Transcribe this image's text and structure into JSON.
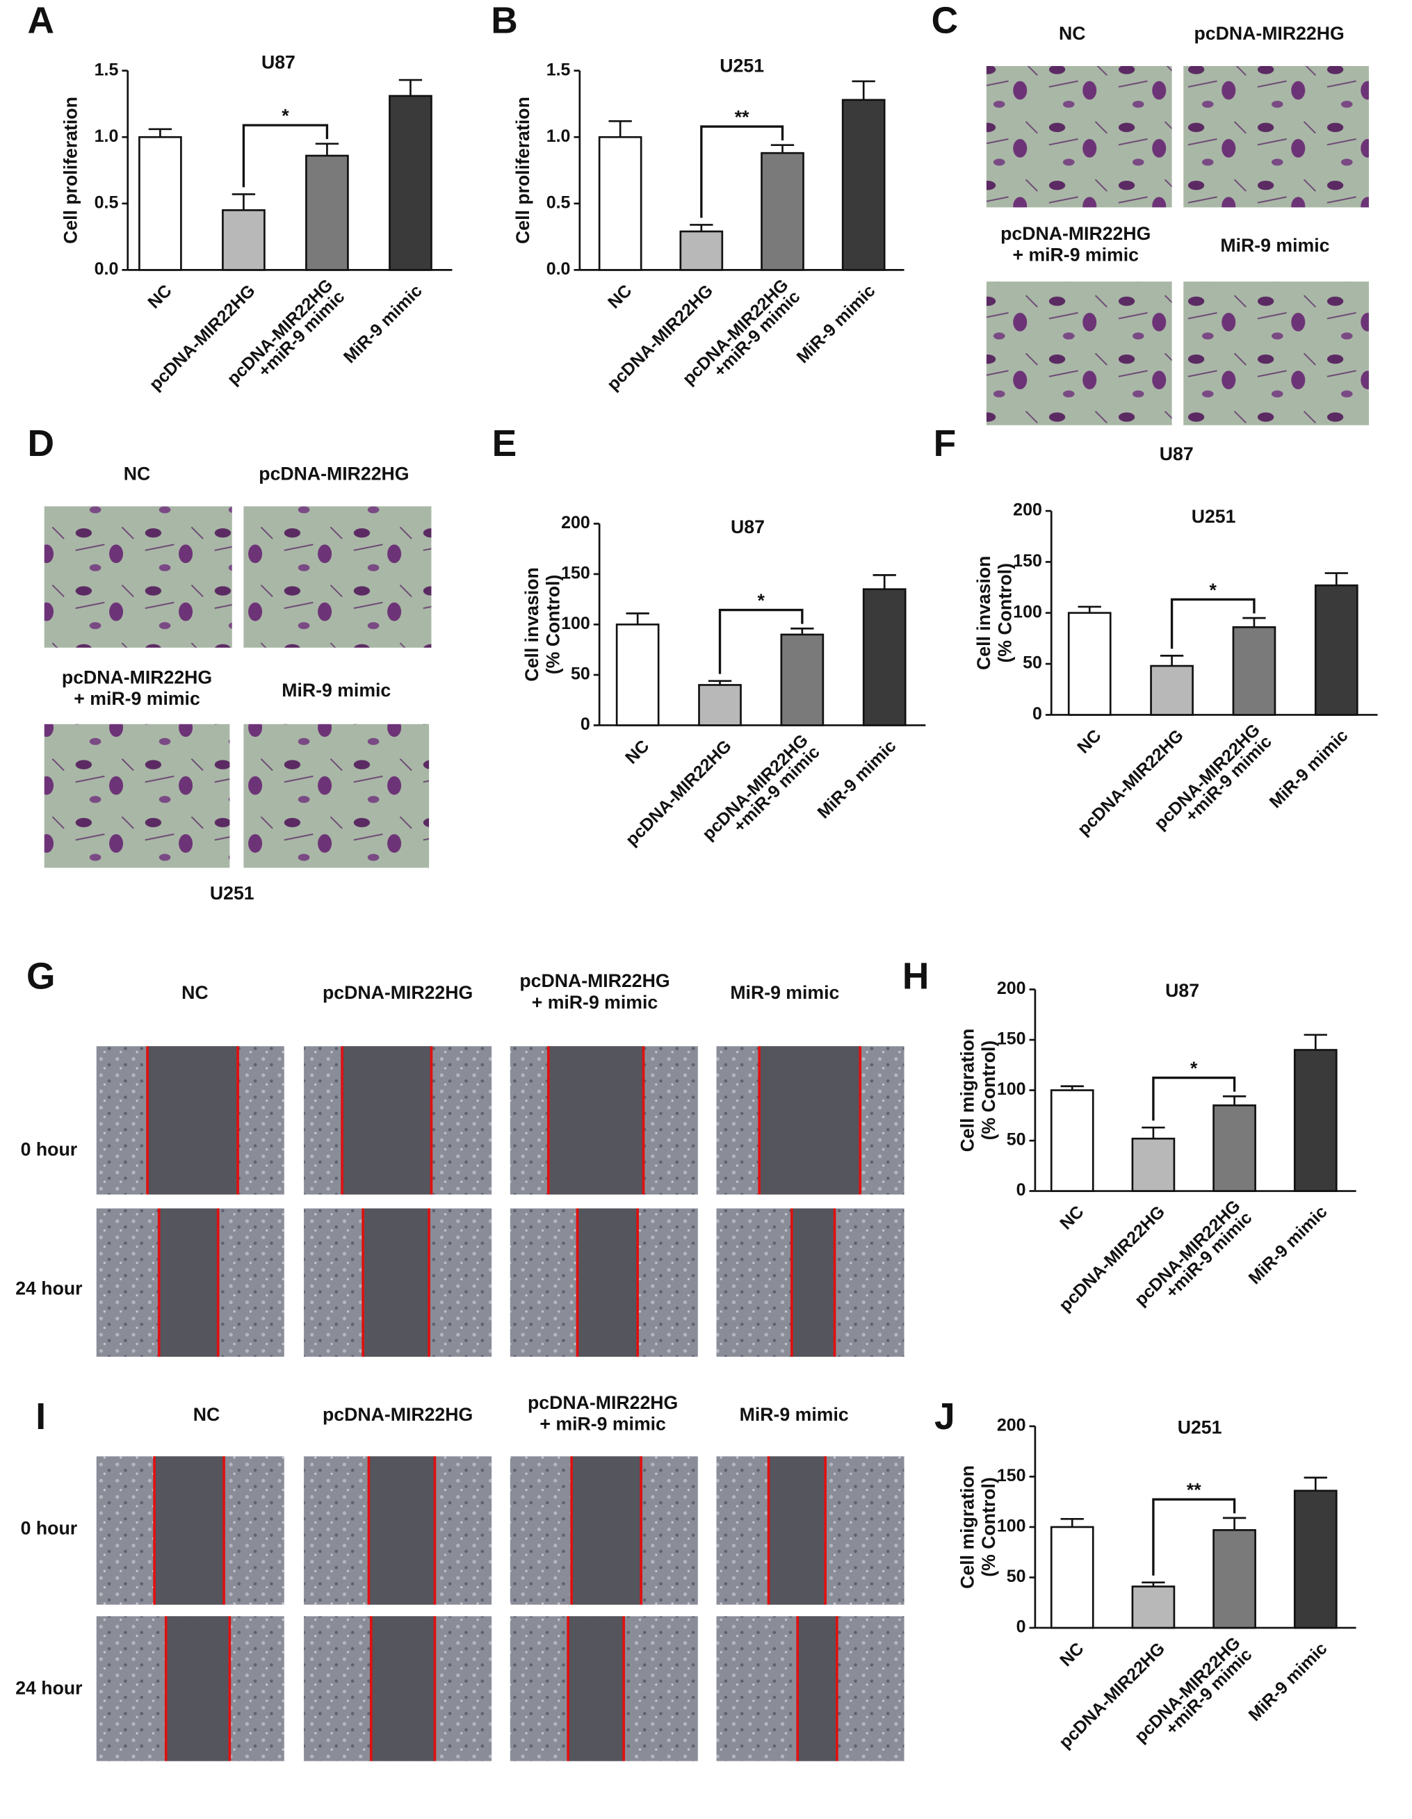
{
  "chart_data": [
    {
      "type": "bar",
      "title": "U87",
      "ylabel": "Cell  proliferation",
      "categories": [
        "NC",
        "pcDNA-MIR22HG",
        "pcDNA-MIR22HG\n+miR-9 mimic",
        "MiR-9 mimic"
      ],
      "values": [
        1.0,
        0.45,
        0.86,
        1.31
      ],
      "errors": [
        0.06,
        0.12,
        0.09,
        0.12
      ],
      "colors": [
        "#ffffff",
        "#b8b8b8",
        "#7a7a7a",
        "#3a3a3a"
      ],
      "ylim": [
        0,
        1.5
      ],
      "yticks": [
        {
          "value": 0,
          "label": "0.0"
        },
        0.5,
        {
          "value": 1,
          "label": "1.0"
        },
        1.5
      ],
      "annotations": [
        {
          "text": "*",
          "from": 1,
          "to": 2
        }
      ]
    },
    {
      "type": "bar",
      "title": "U251",
      "ylabel": "Cell  proliferation",
      "categories": [
        "NC",
        "pcDNA-MIR22HG",
        "pcDNA-MIR22HG\n+miR-9 mimic",
        "MiR-9 mimic"
      ],
      "values": [
        1.0,
        0.29,
        0.88,
        1.28
      ],
      "errors": [
        0.12,
        0.05,
        0.06,
        0.14
      ],
      "colors": [
        "#ffffff",
        "#b8b8b8",
        "#7a7a7a",
        "#3a3a3a"
      ],
      "ylim": [
        0,
        1.5
      ],
      "yticks": [
        {
          "value": 0,
          "label": "0.0"
        },
        0.5,
        {
          "value": 1,
          "label": "1.0"
        },
        1.5
      ],
      "annotations": [
        {
          "text": "**",
          "from": 1,
          "to": 2
        }
      ]
    },
    {
      "type": "bar",
      "title": "U87",
      "ylabel": "Cell invasion\n(% Control)",
      "categories": [
        "NC",
        "pcDNA-MIR22HG",
        "pcDNA-MIR22HG\n+miR-9 mimic",
        "MiR-9 mimic"
      ],
      "values": [
        100,
        40,
        90,
        135
      ],
      "errors": [
        11,
        4,
        6,
        14
      ],
      "colors": [
        "#ffffff",
        "#b8b8b8",
        "#7a7a7a",
        "#3a3a3a"
      ],
      "ylim": [
        0,
        200
      ],
      "yticks": [
        0,
        50,
        100,
        150,
        200
      ],
      "annotations": [
        {
          "text": "*",
          "from": 1,
          "to": 2
        }
      ]
    },
    {
      "type": "bar",
      "title": "U251",
      "ylabel": "Cell invasion\n(% Control)",
      "categories": [
        "NC",
        "pcDNA-MIR22HG",
        "pcDNA-MIR22HG\n+miR-9 mimic",
        "MiR-9 mimic"
      ],
      "values": [
        100,
        48,
        86,
        127
      ],
      "errors": [
        6,
        10,
        9,
        12
      ],
      "colors": [
        "#ffffff",
        "#b8b8b8",
        "#7a7a7a",
        "#3a3a3a"
      ],
      "ylim": [
        0,
        200
      ],
      "yticks": [
        0,
        50,
        100,
        150,
        200
      ],
      "annotations": [
        {
          "text": "*",
          "from": 1,
          "to": 2
        }
      ]
    },
    {
      "type": "bar",
      "title": "U87",
      "ylabel": "Cell migration\n(% Control)",
      "categories": [
        "NC",
        "pcDNA-MIR22HG",
        "pcDNA-MIR22HG\n+miR-9 mimic",
        "MiR-9 mimic"
      ],
      "values": [
        100,
        52,
        85,
        140
      ],
      "errors": [
        4,
        11,
        9,
        15
      ],
      "colors": [
        "#ffffff",
        "#b8b8b8",
        "#7a7a7a",
        "#3a3a3a"
      ],
      "ylim": [
        0,
        200
      ],
      "yticks": [
        0,
        50,
        100,
        150,
        200
      ],
      "annotations": [
        {
          "text": "*",
          "from": 1,
          "to": 2
        }
      ]
    },
    {
      "type": "bar",
      "title": "U251",
      "ylabel": "Cell migration\n(% Control)",
      "categories": [
        "NC",
        "pcDNA-MIR22HG",
        "pcDNA-MIR22HG\n+miR-9 mimic",
        "MiR-9 mimic"
      ],
      "values": [
        100,
        41,
        97,
        136
      ],
      "errors": [
        8,
        4,
        12,
        13
      ],
      "colors": [
        "#ffffff",
        "#b8b8b8",
        "#7a7a7a",
        "#3a3a3a"
      ],
      "ylim": [
        0,
        200
      ],
      "yticks": [
        0,
        50,
        100,
        150,
        200
      ],
      "annotations": [
        {
          "text": "**",
          "from": 1,
          "to": 2
        }
      ]
    }
  ],
  "panel_labels": [
    "A",
    "B",
    "C",
    "D",
    "E",
    "F",
    "G",
    "H",
    "I",
    "J"
  ],
  "invasion_images": [
    {
      "labels": [
        "NC",
        "pcDNA-MIR22HG",
        "pcDNA-MIR22HG\n+ miR-9 mimic",
        "MiR-9 mimic"
      ],
      "caption": "U87"
    },
    {
      "labels": [
        "NC",
        "pcDNA-MIR22HG",
        "pcDNA-MIR22HG\n+ miR-9 mimic",
        "MiR-9 mimic"
      ],
      "caption": "U251"
    }
  ],
  "wound_images": [
    {
      "columns": [
        "NC",
        "pcDNA-MIR22HG",
        "pcDNA-MIR22HG\n+ miR-9 mimic",
        "MiR-9 mimic"
      ],
      "rows": [
        "0 hour",
        "24 hour"
      ]
    },
    {
      "columns": [
        "NC",
        "pcDNA-MIR22HG",
        "pcDNA-MIR22HG\n+ miR-9 mimic",
        "MiR-9 mimic"
      ],
      "rows": [
        "0 hour",
        "24 hour"
      ]
    }
  ]
}
